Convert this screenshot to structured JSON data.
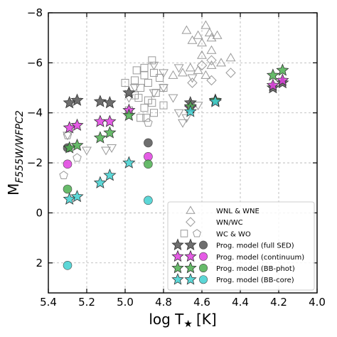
{
  "chart_data": {
    "type": "scatter",
    "xlabel": "log T",
    "xlabel_sub": "★",
    "xlabel_unit": "[K]",
    "ylabel": "M",
    "ylabel_sub": "F555W/WFPC2",
    "xlim": [
      5.4,
      4.0
    ],
    "ylim": [
      3.2,
      -8
    ],
    "x_ticks": [
      {
        "value": 5.4,
        "label": "5.4"
      },
      {
        "value": 5.2,
        "label": "5.2"
      },
      {
        "value": 5.0,
        "label": "5.0"
      },
      {
        "value": 4.8,
        "label": "4.8"
      },
      {
        "value": 4.6,
        "label": "4.6"
      },
      {
        "value": 4.4,
        "label": "4.4"
      },
      {
        "value": 4.2,
        "label": "4.2"
      },
      {
        "value": 4.0,
        "label": "4.0"
      }
    ],
    "y_ticks": [
      {
        "value": -8,
        "label": "−8"
      },
      {
        "value": -6,
        "label": "−6"
      },
      {
        "value": -4,
        "label": "−4"
      },
      {
        "value": -2,
        "label": "−2"
      },
      {
        "value": 0,
        "label": "0"
      },
      {
        "value": 2,
        "label": "2"
      }
    ],
    "grid": true,
    "legend_position": "bottom-right",
    "legend": [
      {
        "label": "WNL & WNE",
        "markers": [
          "triangle-up"
        ],
        "colors": [
          "#999999"
        ]
      },
      {
        "label": "WN/WC",
        "markers": [
          "diamond"
        ],
        "colors": [
          "#999999"
        ]
      },
      {
        "label": "WC & WO",
        "markers": [
          "square",
          "pentagon"
        ],
        "colors": [
          "#999999"
        ]
      },
      {
        "label": "Prog. model (full SED)",
        "markers": [
          "star",
          "star",
          "circle"
        ],
        "colors": [
          "#555555"
        ]
      },
      {
        "label": "Prog. model (continuum)",
        "markers": [
          "star",
          "star",
          "circle"
        ],
        "colors": [
          "#e040e0"
        ]
      },
      {
        "label": "Prog. model (BB-phot)",
        "markers": [
          "star",
          "star",
          "circle"
        ],
        "colors": [
          "#4caf50"
        ]
      },
      {
        "label": "Prog. model (BB-core)",
        "markers": [
          "star",
          "star",
          "circle"
        ],
        "colors": [
          "#40d0d0"
        ]
      }
    ],
    "series": [
      {
        "name": "WNL & WNE",
        "marker": "triangle-up",
        "color": "#999999",
        "points": [
          [
            4.68,
            -7.3
          ],
          [
            4.62,
            -7.1
          ],
          [
            4.58,
            -7.5
          ],
          [
            4.56,
            -7.2
          ],
          [
            4.55,
            -7.0
          ],
          [
            4.52,
            -7.1
          ],
          [
            4.6,
            -6.8
          ],
          [
            4.65,
            -6.9
          ],
          [
            4.66,
            -5.8
          ],
          [
            4.55,
            -5.9
          ],
          [
            4.58,
            -5.5
          ],
          [
            4.62,
            -5.7
          ],
          [
            4.7,
            -5.6
          ],
          [
            4.5,
            -6.0
          ],
          [
            4.55,
            -6.5
          ],
          [
            4.45,
            -6.2
          ],
          [
            4.75,
            -5.5
          ],
          [
            4.6,
            -6.3
          ]
        ]
      },
      {
        "name": "WN/WC",
        "marker": "diamond",
        "color": "#999999",
        "points": [
          [
            4.6,
            -5.9
          ],
          [
            4.55,
            -6.1
          ],
          [
            4.45,
            -5.6
          ],
          [
            4.55,
            -5.3
          ],
          [
            4.65,
            -5.2
          ]
        ]
      },
      {
        "name": "WN triangles-down",
        "marker": "triangle-down",
        "color": "#999999",
        "points": [
          [
            4.72,
            -5.8
          ],
          [
            4.8,
            -5.6
          ],
          [
            4.85,
            -4.8
          ],
          [
            4.8,
            -5.0
          ],
          [
            4.75,
            -4.6
          ],
          [
            4.95,
            -5.0
          ],
          [
            4.98,
            -4.6
          ],
          [
            4.65,
            -5.4
          ],
          [
            4.68,
            -3.8
          ],
          [
            4.7,
            -3.6
          ],
          [
            4.72,
            -4.0
          ],
          [
            4.85,
            -5.9
          ],
          [
            4.62,
            -4.3
          ],
          [
            5.2,
            -2.5
          ],
          [
            5.07,
            -2.6
          ],
          [
            5.3,
            -3.1
          ],
          [
            5.1,
            -2.5
          ]
        ]
      },
      {
        "name": "WC & WO squares",
        "marker": "square",
        "color": "#999999",
        "points": [
          [
            4.85,
            -5.6
          ],
          [
            4.9,
            -5.8
          ],
          [
            4.82,
            -5.4
          ],
          [
            4.88,
            -5.2
          ],
          [
            4.92,
            -5.0
          ],
          [
            4.95,
            -4.7
          ],
          [
            4.88,
            -4.5
          ],
          [
            4.9,
            -4.2
          ],
          [
            4.85,
            -4.0
          ],
          [
            4.95,
            -5.3
          ],
          [
            4.9,
            -5.5
          ],
          [
            4.8,
            -5.0
          ],
          [
            4.86,
            -4.4
          ],
          [
            4.92,
            -3.8
          ],
          [
            4.98,
            -4.1
          ],
          [
            4.86,
            -6.1
          ],
          [
            4.93,
            -4.6
          ],
          [
            4.84,
            -4.8
          ],
          [
            5.0,
            -5.2
          ],
          [
            4.89,
            -3.8
          ],
          [
            4.94,
            -5.7
          ],
          [
            4.8,
            -4.3
          ]
        ]
      },
      {
        "name": "WC & WO pentagons",
        "marker": "pentagon",
        "color": "#999999",
        "points": [
          [
            5.3,
            -3.1
          ],
          [
            5.32,
            -1.5
          ],
          [
            4.88,
            -3.6
          ],
          [
            5.25,
            -2.2
          ]
        ]
      },
      {
        "name": "Prog. model (full SED)",
        "marker": "star",
        "color": "#555555",
        "points": [
          [
            5.29,
            -4.4
          ],
          [
            5.25,
            -4.5
          ],
          [
            5.13,
            -4.45
          ],
          [
            5.08,
            -4.4
          ],
          [
            4.98,
            -4.8
          ],
          [
            4.66,
            -4.4
          ],
          [
            4.53,
            -4.5
          ],
          [
            4.23,
            -5.0
          ],
          [
            4.18,
            -5.2
          ]
        ]
      },
      {
        "name": "Prog. model (full SED) circles",
        "marker": "circle",
        "color": "#555555",
        "points": [
          [
            5.3,
            -2.6
          ],
          [
            4.88,
            -2.8
          ]
        ]
      },
      {
        "name": "Prog. model (continuum)",
        "marker": "star",
        "color": "#e040e0",
        "points": [
          [
            5.29,
            -3.4
          ],
          [
            5.25,
            -3.5
          ],
          [
            5.13,
            -3.65
          ],
          [
            5.08,
            -3.65
          ],
          [
            4.98,
            -4.1
          ],
          [
            4.66,
            -4.2
          ],
          [
            4.53,
            -4.45
          ],
          [
            4.23,
            -5.1
          ],
          [
            4.18,
            -5.3
          ]
        ]
      },
      {
        "name": "Prog. model (continuum) circles",
        "marker": "circle",
        "color": "#e040e0",
        "points": [
          [
            5.3,
            -1.95
          ],
          [
            4.88,
            -2.25
          ]
        ]
      },
      {
        "name": "Prog. model (BB-phot)",
        "marker": "star",
        "color": "#4caf50",
        "points": [
          [
            5.29,
            -2.6
          ],
          [
            5.25,
            -2.7
          ],
          [
            5.13,
            -3.0
          ],
          [
            5.08,
            -3.2
          ],
          [
            4.98,
            -3.9
          ],
          [
            4.66,
            -4.25
          ],
          [
            4.53,
            -4.5
          ],
          [
            4.23,
            -5.5
          ],
          [
            4.18,
            -5.7
          ]
        ]
      },
      {
        "name": "Prog. model (BB-phot) circles",
        "marker": "circle",
        "color": "#4caf50",
        "points": [
          [
            5.3,
            -0.95
          ],
          [
            4.88,
            -1.95
          ]
        ]
      },
      {
        "name": "Prog. model (BB-core)",
        "marker": "star",
        "color": "#40d0d0",
        "points": [
          [
            5.29,
            -0.55
          ],
          [
            5.25,
            -0.65
          ],
          [
            5.13,
            -1.2
          ],
          [
            5.08,
            -1.5
          ],
          [
            4.98,
            -2.0
          ],
          [
            4.66,
            -4.05
          ],
          [
            4.53,
            -4.45
          ]
        ]
      },
      {
        "name": "Prog. model (BB-core) circles",
        "marker": "circle",
        "color": "#40d0d0",
        "points": [
          [
            5.3,
            2.1
          ],
          [
            4.88,
            -0.5
          ]
        ]
      }
    ]
  }
}
